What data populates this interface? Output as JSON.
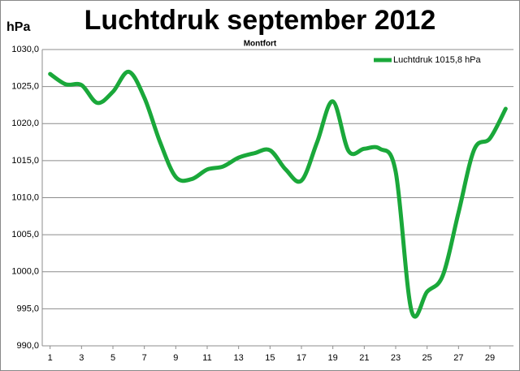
{
  "chart_data": {
    "type": "line",
    "title": "Luchtdruk september 2012",
    "subtitle": "Montfort",
    "ylabel": "hPa",
    "x": [
      1,
      2,
      3,
      4,
      5,
      6,
      7,
      8,
      9,
      10,
      11,
      12,
      13,
      14,
      15,
      16,
      17,
      18,
      19,
      20,
      21,
      22,
      23,
      24,
      25,
      26,
      27,
      28,
      29,
      30
    ],
    "series": [
      {
        "name": "Luchtdruk 1015,8 hPa",
        "color": "#1aa83a",
        "values": [
          1026.7,
          1025.3,
          1025.2,
          1022.8,
          1024.3,
          1027.0,
          1023.5,
          1017.5,
          1012.8,
          1012.5,
          1013.8,
          1014.2,
          1015.4,
          1016.0,
          1016.4,
          1013.8,
          1012.3,
          1017.5,
          1023.0,
          1016.3,
          1016.6,
          1016.6,
          1013.5,
          994.8,
          997.3,
          999.5,
          1008.0,
          1016.5,
          1018.0,
          1022.0
        ]
      }
    ],
    "xlim": [
      0.5,
      30.5
    ],
    "xticks": [
      1,
      3,
      5,
      7,
      9,
      11,
      13,
      15,
      17,
      19,
      21,
      23,
      25,
      27,
      29
    ],
    "ylim": [
      990,
      1030
    ],
    "yticks": [
      {
        "value": 990,
        "label": "990,0"
      },
      {
        "value": 995,
        "label": "995,0"
      },
      {
        "value": 1000,
        "label": "1000,0"
      },
      {
        "value": 1005,
        "label": "1005,0"
      },
      {
        "value": 1010,
        "label": "1010,0"
      },
      {
        "value": 1015,
        "label": "1015,0"
      },
      {
        "value": 1020,
        "label": "1020,0"
      },
      {
        "value": 1025,
        "label": "1025,0"
      },
      {
        "value": 1030,
        "label": "1030,0"
      }
    ],
    "grid": true,
    "legend": "top-right"
  }
}
